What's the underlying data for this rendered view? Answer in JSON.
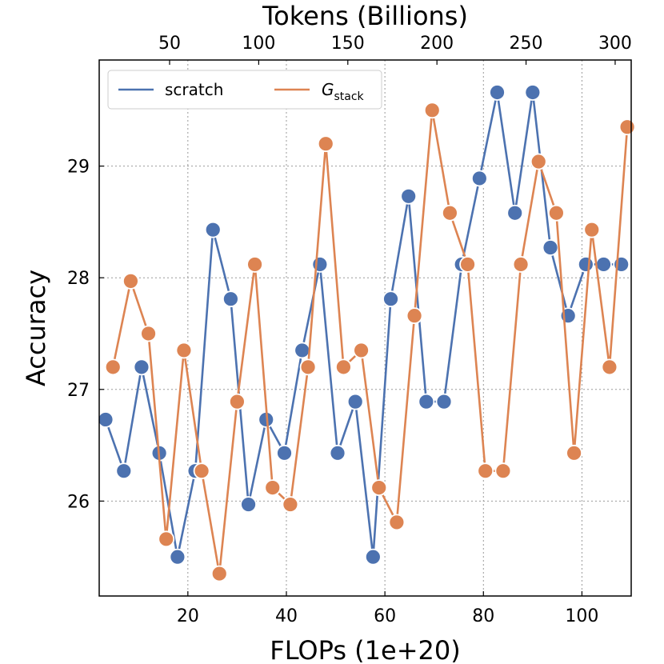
{
  "chart_data": {
    "type": "line",
    "xlabel": "FLOPs (1e+20)",
    "ylabel": "Accuracy",
    "x2label": "Tokens (Billions)",
    "xlim": [
      2,
      110
    ],
    "ylim": [
      25.15,
      29.95
    ],
    "x_ticks": [
      20,
      40,
      60,
      80,
      100
    ],
    "y_ticks": [
      26,
      27,
      28,
      29
    ],
    "x2_ticks": [
      50,
      100,
      150,
      200,
      250,
      300
    ],
    "x2_lim": [
      10.5,
      309
    ],
    "grid": true,
    "legend_position": "top-left",
    "series": [
      {
        "name": "scratch",
        "color": "#4c72b0",
        "x": [
          3.3,
          7.0,
          10.6,
          14.2,
          17.9,
          21.5,
          25.1,
          28.7,
          32.3,
          35.9,
          39.6,
          43.2,
          46.8,
          50.4,
          54.0,
          57.6,
          61.2,
          64.8,
          68.4,
          72.0,
          75.6,
          79.2,
          82.8,
          86.4,
          90.0,
          93.6,
          97.2,
          100.8,
          104.4,
          108.0
        ],
        "y": [
          26.73,
          26.27,
          27.2,
          26.43,
          25.5,
          26.27,
          28.43,
          27.81,
          25.97,
          26.73,
          26.43,
          27.35,
          28.12,
          26.43,
          26.89,
          25.5,
          27.81,
          28.73,
          26.89,
          26.89,
          28.12,
          28.89,
          29.66,
          28.58,
          29.66,
          28.27,
          27.66,
          28.12,
          28.12,
          28.12
        ]
      },
      {
        "name": "G_stack",
        "name_base": "G",
        "name_sub": "stack",
        "color": "#dd8452",
        "x": [
          4.8,
          8.4,
          12.0,
          15.6,
          19.2,
          22.8,
          26.4,
          30.0,
          33.6,
          37.2,
          40.8,
          44.4,
          48.0,
          51.6,
          55.2,
          58.8,
          62.4,
          66.0,
          69.6,
          73.2,
          76.8,
          80.4,
          84.0,
          87.6,
          91.2,
          94.8,
          98.4,
          102.0,
          105.6,
          109.2
        ],
        "y": [
          27.2,
          27.97,
          27.5,
          25.66,
          27.35,
          26.27,
          25.35,
          26.89,
          28.12,
          26.12,
          25.97,
          27.2,
          29.2,
          27.2,
          27.35,
          26.12,
          25.81,
          27.66,
          29.5,
          28.58,
          28.12,
          26.27,
          26.27,
          28.12,
          29.04,
          28.58,
          26.43,
          28.43,
          27.2,
          29.35
        ]
      }
    ]
  }
}
